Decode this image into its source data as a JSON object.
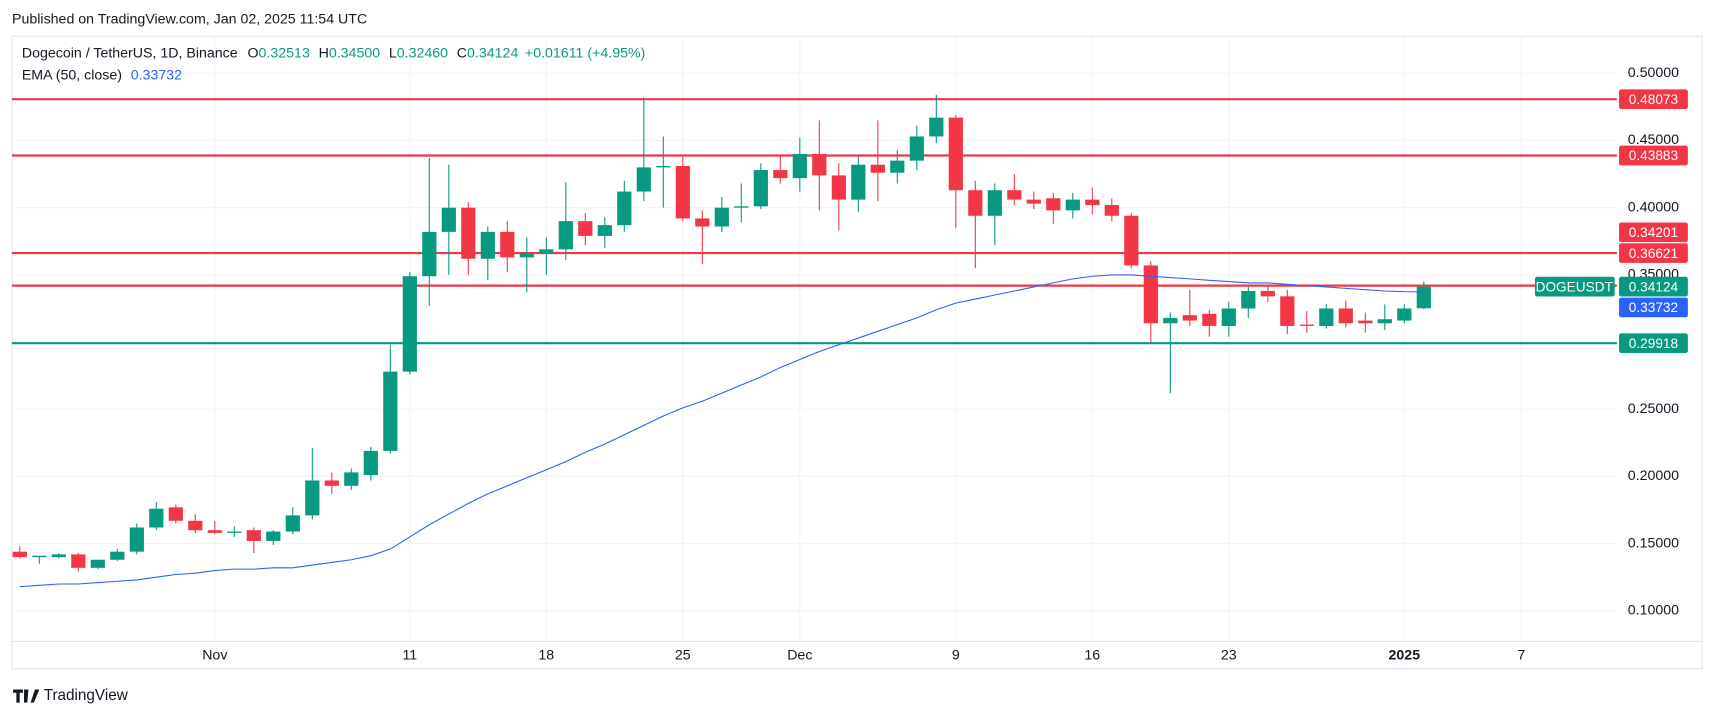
{
  "published": "Published on TradingView.com, Jan 02, 2025 11:54 UTC",
  "footer": "TradingView",
  "chart_data": {
    "type": "candlestick",
    "title": "Dogecoin / TetherUS, 1D, Binance",
    "ohlc": [
      {
        "key": "O",
        "text": "0.32513"
      },
      {
        "key": "H",
        "text": "0.34500"
      },
      {
        "key": "L",
        "text": "0.32460"
      },
      {
        "key": "C",
        "text": "0.34124"
      }
    ],
    "change": "+0.01611 (+4.95%)",
    "x": [
      -9,
      -8,
      -7,
      -6,
      -5,
      -4,
      -3,
      -2,
      -1,
      0,
      1,
      2,
      3,
      4,
      5,
      6,
      7,
      8,
      9,
      10,
      11,
      12,
      13,
      14,
      15,
      16,
      17,
      18,
      19,
      20,
      21,
      22,
      23,
      24,
      25,
      26,
      27,
      28,
      29,
      30,
      31,
      32,
      33,
      34,
      35,
      36,
      37,
      38,
      39,
      40,
      41,
      42,
      43,
      44,
      45,
      46,
      47,
      48,
      49,
      50,
      51,
      52,
      53,
      54,
      55,
      56,
      57,
      58,
      59,
      60,
      61,
      62,
      63
    ],
    "series": [
      {
        "name": "DOGEUSDT",
        "up_color": "#089981",
        "down_color": "#f23645",
        "open": [
          0.144,
          0.14,
          0.14,
          0.142,
          0.132,
          0.138,
          0.144,
          0.162,
          0.177,
          0.167,
          0.16,
          0.158,
          0.16,
          0.152,
          0.159,
          0.171,
          0.197,
          0.193,
          0.201,
          0.219,
          0.278,
          0.349,
          0.382,
          0.4,
          0.362,
          0.382,
          0.363,
          0.366,
          0.369,
          0.39,
          0.379,
          0.387,
          0.412,
          0.43,
          0.431,
          0.392,
          0.386,
          0.4,
          0.401,
          0.428,
          0.422,
          0.44,
          0.424,
          0.406,
          0.432,
          0.426,
          0.435,
          0.453,
          0.467,
          0.413,
          0.394,
          0.413,
          0.406,
          0.407,
          0.398,
          0.406,
          0.402,
          0.394,
          0.357,
          0.314,
          0.32,
          0.321,
          0.312,
          0.325,
          0.338,
          0.334,
          0.313,
          0.312,
          0.325,
          0.316,
          0.314,
          0.316,
          0.32513
        ],
        "high": [
          0.148,
          0.141,
          0.143,
          0.143,
          0.138,
          0.146,
          0.165,
          0.181,
          0.179,
          0.172,
          0.167,
          0.163,
          0.162,
          0.16,
          0.177,
          0.221,
          0.203,
          0.206,
          0.222,
          0.298,
          0.352,
          0.437,
          0.432,
          0.404,
          0.386,
          0.39,
          0.378,
          0.378,
          0.419,
          0.396,
          0.393,
          0.42,
          0.482,
          0.453,
          0.438,
          0.398,
          0.408,
          0.418,
          0.433,
          0.438,
          0.452,
          0.465,
          0.433,
          0.438,
          0.465,
          0.443,
          0.461,
          0.484,
          0.469,
          0.42,
          0.418,
          0.425,
          0.412,
          0.411,
          0.411,
          0.415,
          0.407,
          0.396,
          0.36,
          0.322,
          0.339,
          0.324,
          0.33,
          0.341,
          0.342,
          0.339,
          0.323,
          0.328,
          0.331,
          0.322,
          0.328,
          0.328,
          0.345
        ],
        "low": [
          0.139,
          0.135,
          0.139,
          0.129,
          0.131,
          0.137,
          0.142,
          0.16,
          0.165,
          0.158,
          0.157,
          0.155,
          0.143,
          0.149,
          0.157,
          0.168,
          0.187,
          0.19,
          0.197,
          0.217,
          0.276,
          0.327,
          0.35,
          0.35,
          0.346,
          0.352,
          0.337,
          0.35,
          0.361,
          0.372,
          0.37,
          0.382,
          0.405,
          0.4,
          0.39,
          0.358,
          0.382,
          0.389,
          0.399,
          0.418,
          0.412,
          0.398,
          0.383,
          0.397,
          0.405,
          0.418,
          0.428,
          0.448,
          0.385,
          0.355,
          0.372,
          0.402,
          0.399,
          0.388,
          0.392,
          0.395,
          0.39,
          0.355,
          0.3,
          0.262,
          0.312,
          0.304,
          0.304,
          0.318,
          0.33,
          0.306,
          0.307,
          0.31,
          0.311,
          0.307,
          0.309,
          0.314,
          0.3246
        ],
        "close": [
          0.14,
          0.141,
          0.142,
          0.132,
          0.138,
          0.144,
          0.162,
          0.176,
          0.167,
          0.16,
          0.158,
          0.159,
          0.152,
          0.159,
          0.171,
          0.197,
          0.193,
          0.203,
          0.219,
          0.278,
          0.349,
          0.382,
          0.4,
          0.362,
          0.382,
          0.363,
          0.366,
          0.369,
          0.39,
          0.379,
          0.387,
          0.412,
          0.43,
          0.431,
          0.392,
          0.386,
          0.4,
          0.401,
          0.428,
          0.422,
          0.44,
          0.424,
          0.406,
          0.432,
          0.426,
          0.435,
          0.453,
          0.467,
          0.413,
          0.394,
          0.413,
          0.406,
          0.403,
          0.398,
          0.406,
          0.402,
          0.394,
          0.357,
          0.314,
          0.318,
          0.316,
          0.312,
          0.325,
          0.338,
          0.334,
          0.312,
          0.312,
          0.325,
          0.314,
          0.314,
          0.317,
          0.325,
          0.34124
        ]
      },
      {
        "name": "EMA (50, close)",
        "color": "#2962ff",
        "values": [
          0.118,
          0.119,
          0.12,
          0.12,
          0.121,
          0.122,
          0.123,
          0.125,
          0.127,
          0.128,
          0.13,
          0.131,
          0.131,
          0.132,
          0.132,
          0.134,
          0.136,
          0.138,
          0.141,
          0.146,
          0.155,
          0.164,
          0.172,
          0.18,
          0.187,
          0.193,
          0.199,
          0.205,
          0.211,
          0.218,
          0.224,
          0.231,
          0.238,
          0.245,
          0.251,
          0.256,
          0.262,
          0.268,
          0.274,
          0.281,
          0.287,
          0.293,
          0.298,
          0.303,
          0.308,
          0.313,
          0.318,
          0.324,
          0.329,
          0.332,
          0.335,
          0.338,
          0.341,
          0.344,
          0.347,
          0.349,
          0.35,
          0.35,
          0.349,
          0.348,
          0.347,
          0.346,
          0.345,
          0.344,
          0.344,
          0.343,
          0.342,
          0.341,
          0.34,
          0.339,
          0.338,
          0.3375,
          0.33732
        ]
      }
    ],
    "levels": [
      {
        "value": 0.48073,
        "color": "#f23645"
      },
      {
        "value": 0.43883,
        "color": "#f23645"
      },
      {
        "value": 0.36621,
        "color": "#f23645"
      },
      {
        "value": 0.34201,
        "color": "#f23645"
      },
      {
        "value": 0.29918,
        "color": "#089981"
      }
    ],
    "xlim": [
      -9.4,
      72.9
    ],
    "ylim": [
      0.0772,
      0.5276
    ],
    "xticks": [
      {
        "value": 1,
        "label": "Nov"
      },
      11,
      18,
      25,
      {
        "value": 31,
        "label": "Dec"
      },
      {
        "value": 39,
        "label": "9"
      },
      {
        "value": 46,
        "label": "16"
      },
      {
        "value": 53,
        "label": "23"
      },
      {
        "value": 62,
        "label": "2025"
      },
      {
        "value": 68,
        "label": "7"
      }
    ],
    "yticks": [
      {
        "value": 0.1,
        "label": "0.10000"
      },
      {
        "value": 0.15,
        "label": "0.15000"
      },
      {
        "value": 0.2,
        "label": "0.20000"
      },
      {
        "value": 0.25,
        "label": "0.25000"
      },
      {
        "value": 0.3,
        "label": "0.30000"
      },
      {
        "value": 0.35,
        "label": "0.35000"
      },
      {
        "value": 0.4,
        "label": "0.40000"
      },
      {
        "value": 0.45,
        "label": "0.45000"
      },
      {
        "value": 0.5,
        "label": "0.50000"
      }
    ],
    "grid": true
  }
}
